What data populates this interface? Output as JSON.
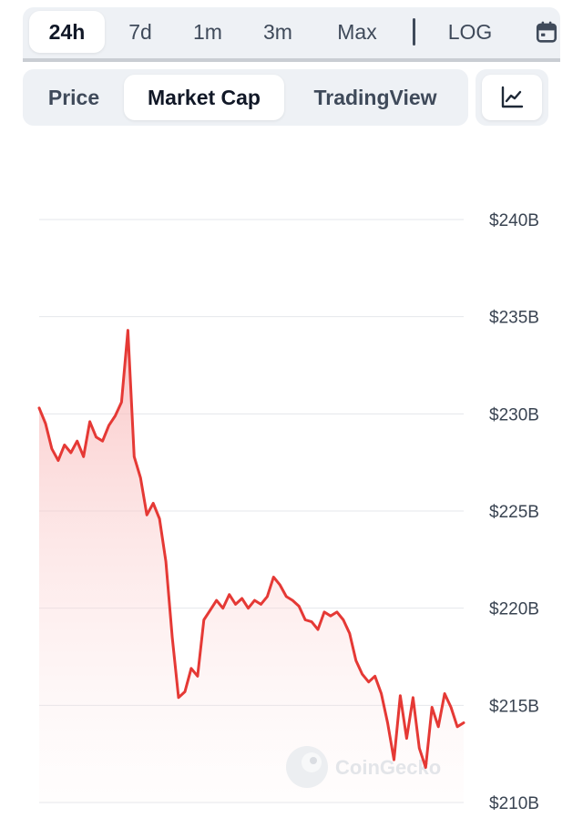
{
  "range_tabs": [
    {
      "label": "24h",
      "active": true
    },
    {
      "label": "7d",
      "active": false
    },
    {
      "label": "1m",
      "active": false
    },
    {
      "label": "3m",
      "active": false
    },
    {
      "label": "Max",
      "active": false
    },
    {
      "label": "LOG",
      "active": false
    }
  ],
  "type_tabs": [
    {
      "label": "Price",
      "active": false
    },
    {
      "label": "Market Cap",
      "active": true
    },
    {
      "label": "TradingView",
      "active": false
    }
  ],
  "icons": {
    "calendar": "calendar-icon",
    "chart_style": "line-chart-icon",
    "watermark": "coingecko-logo"
  },
  "watermark": {
    "text": "CoinGecko"
  },
  "colors": {
    "line": "#e53935",
    "fill_top": "#f8b4b4",
    "grid": "#e5e7eb",
    "active_tab": "#ffffff",
    "tab_bg": "#eef1f5"
  },
  "chart_data": {
    "type": "area",
    "title": "",
    "xlabel": "",
    "ylabel": "",
    "y_tick_labels": [
      "$240B",
      "$235B",
      "$230B",
      "$225B",
      "$220B",
      "$215B",
      "$210B"
    ],
    "ylim": [
      210,
      240
    ],
    "y_axis_position": "right",
    "grid": true,
    "series": [
      {
        "values": [
          230.3,
          229.5,
          228.2,
          227.6,
          228.4,
          228.0,
          228.6,
          227.8,
          229.6,
          228.8,
          228.6,
          229.4,
          229.9,
          230.6,
          234.3,
          227.8,
          226.7,
          224.8,
          225.4,
          224.6,
          222.4,
          218.5,
          215.4,
          215.7,
          216.9,
          216.5,
          219.4,
          219.9,
          220.4,
          220.0,
          220.7,
          220.2,
          220.5,
          220.0,
          220.4,
          220.2,
          220.6,
          221.6,
          221.2,
          220.6,
          220.4,
          220.1,
          219.4,
          219.3,
          218.9,
          219.8,
          219.6,
          219.8,
          219.4,
          218.7,
          217.3,
          216.6,
          216.2,
          216.5,
          215.6,
          214.1,
          212.2,
          215.5,
          213.3,
          215.4,
          212.8,
          211.8,
          214.9,
          213.9,
          215.6,
          214.9,
          213.9,
          214.1
        ]
      }
    ]
  }
}
